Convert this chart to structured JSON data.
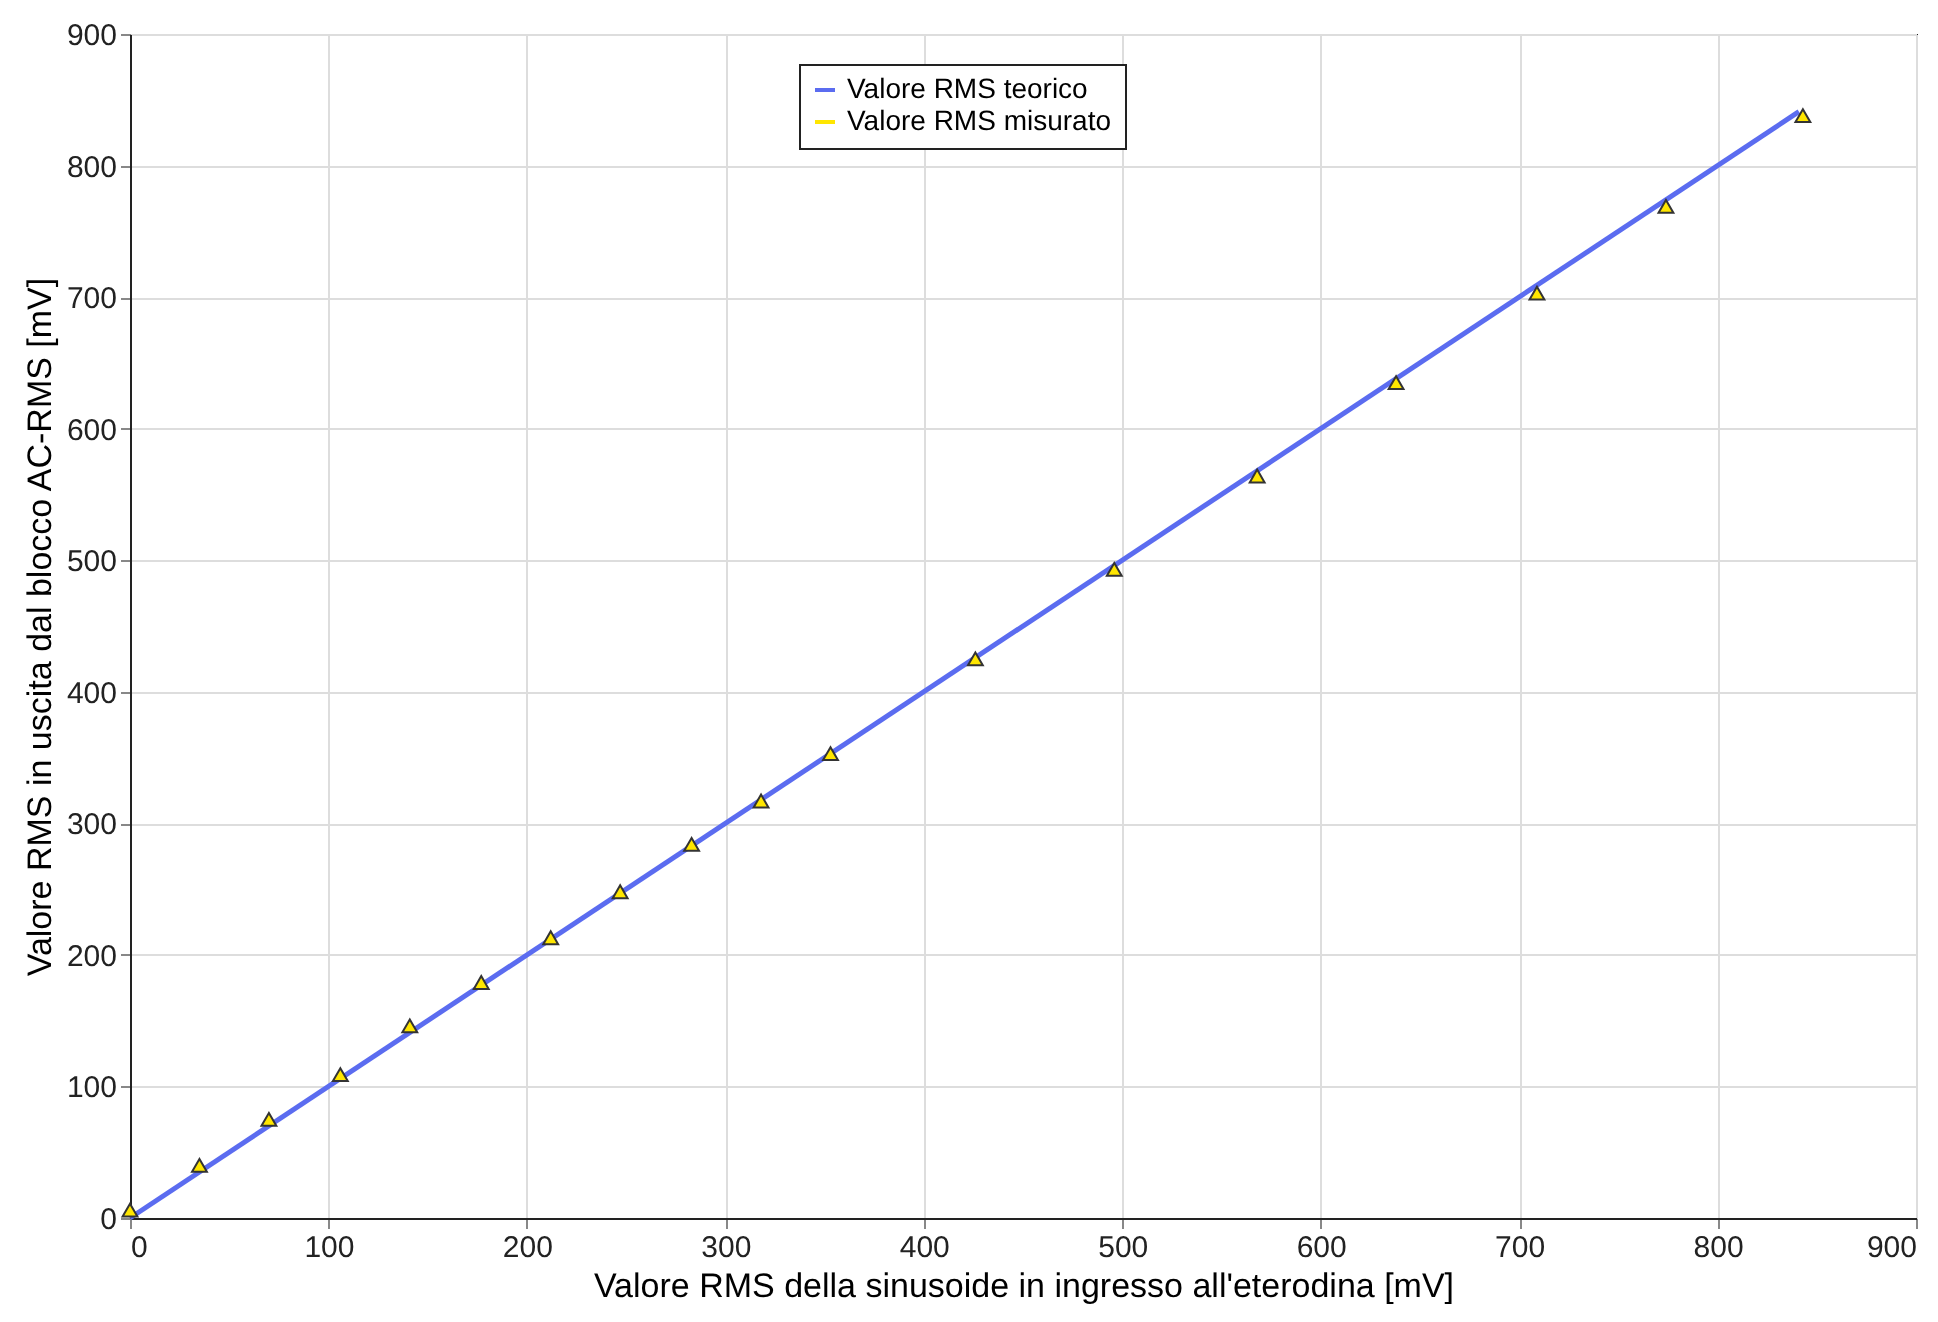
{
  "chart_data": {
    "type": "scatter",
    "xlabel": "Valore RMS della sinusoide in ingresso all'eterodina [mV]",
    "ylabel": "Valore RMS in uscita dal blocco AC-RMS [mV]",
    "xlim": [
      0,
      900
    ],
    "ylim": [
      0,
      900
    ],
    "xticks": [
      0,
      100,
      200,
      300,
      400,
      500,
      600,
      700,
      800,
      900
    ],
    "yticks": [
      0,
      100,
      200,
      300,
      400,
      500,
      600,
      700,
      800,
      900
    ],
    "grid": true,
    "legend": "top",
    "series": [
      {
        "name": "Valore RMS teorico",
        "type": "line",
        "color": "#5b6cf0",
        "line_style": "solid",
        "marker": "none",
        "x": [
          0,
          841
        ],
        "values": [
          0,
          841
        ]
      },
      {
        "name": "Valore RMS misurato",
        "type": "scatter",
        "color": "#ffe600",
        "marker": "triangle",
        "x": [
          0,
          35,
          70,
          106,
          141,
          177,
          212,
          247,
          283,
          318,
          353,
          426,
          496,
          568,
          638,
          709,
          774,
          843
        ],
        "values": [
          6,
          40,
          75,
          109,
          146,
          179,
          213,
          248,
          284,
          317,
          353,
          425,
          493,
          564,
          635,
          703,
          769,
          838
        ]
      }
    ]
  }
}
